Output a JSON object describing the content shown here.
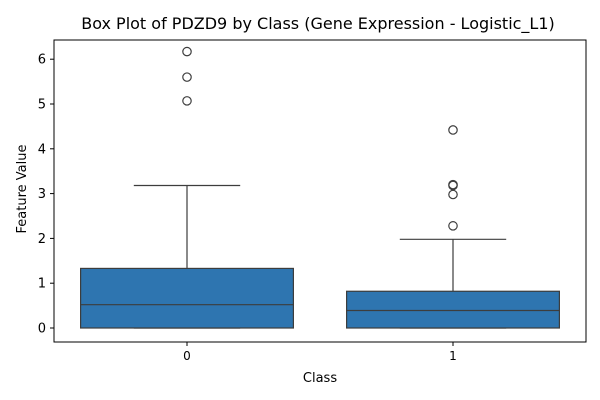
{
  "chart_data": {
    "type": "box",
    "title": "Box Plot of PDZD9 by Class (Gene Expression - Logistic_L1)",
    "xlabel": "Class",
    "ylabel": "Feature Value",
    "categories": [
      "0",
      "1"
    ],
    "ylim": [
      -0.3,
      6.5
    ],
    "yticks": [
      0,
      1,
      2,
      3,
      4,
      5,
      6
    ],
    "grid": false,
    "legend": "none",
    "box_color": "#2e75b0",
    "line_color": "#3d3d3d",
    "boxes": [
      {
        "category": "0",
        "whisker_low": 0,
        "q1": 0,
        "median": 0.52,
        "q3": 1.33,
        "whisker_high": 3.18,
        "outliers": [
          5.07,
          5.6,
          6.17
        ]
      },
      {
        "category": "1",
        "whisker_low": 0,
        "q1": 0,
        "median": 0.39,
        "q3": 0.82,
        "whisker_high": 1.98,
        "outliers": [
          2.28,
          2.98,
          3.18,
          3.2,
          4.42
        ]
      }
    ]
  }
}
